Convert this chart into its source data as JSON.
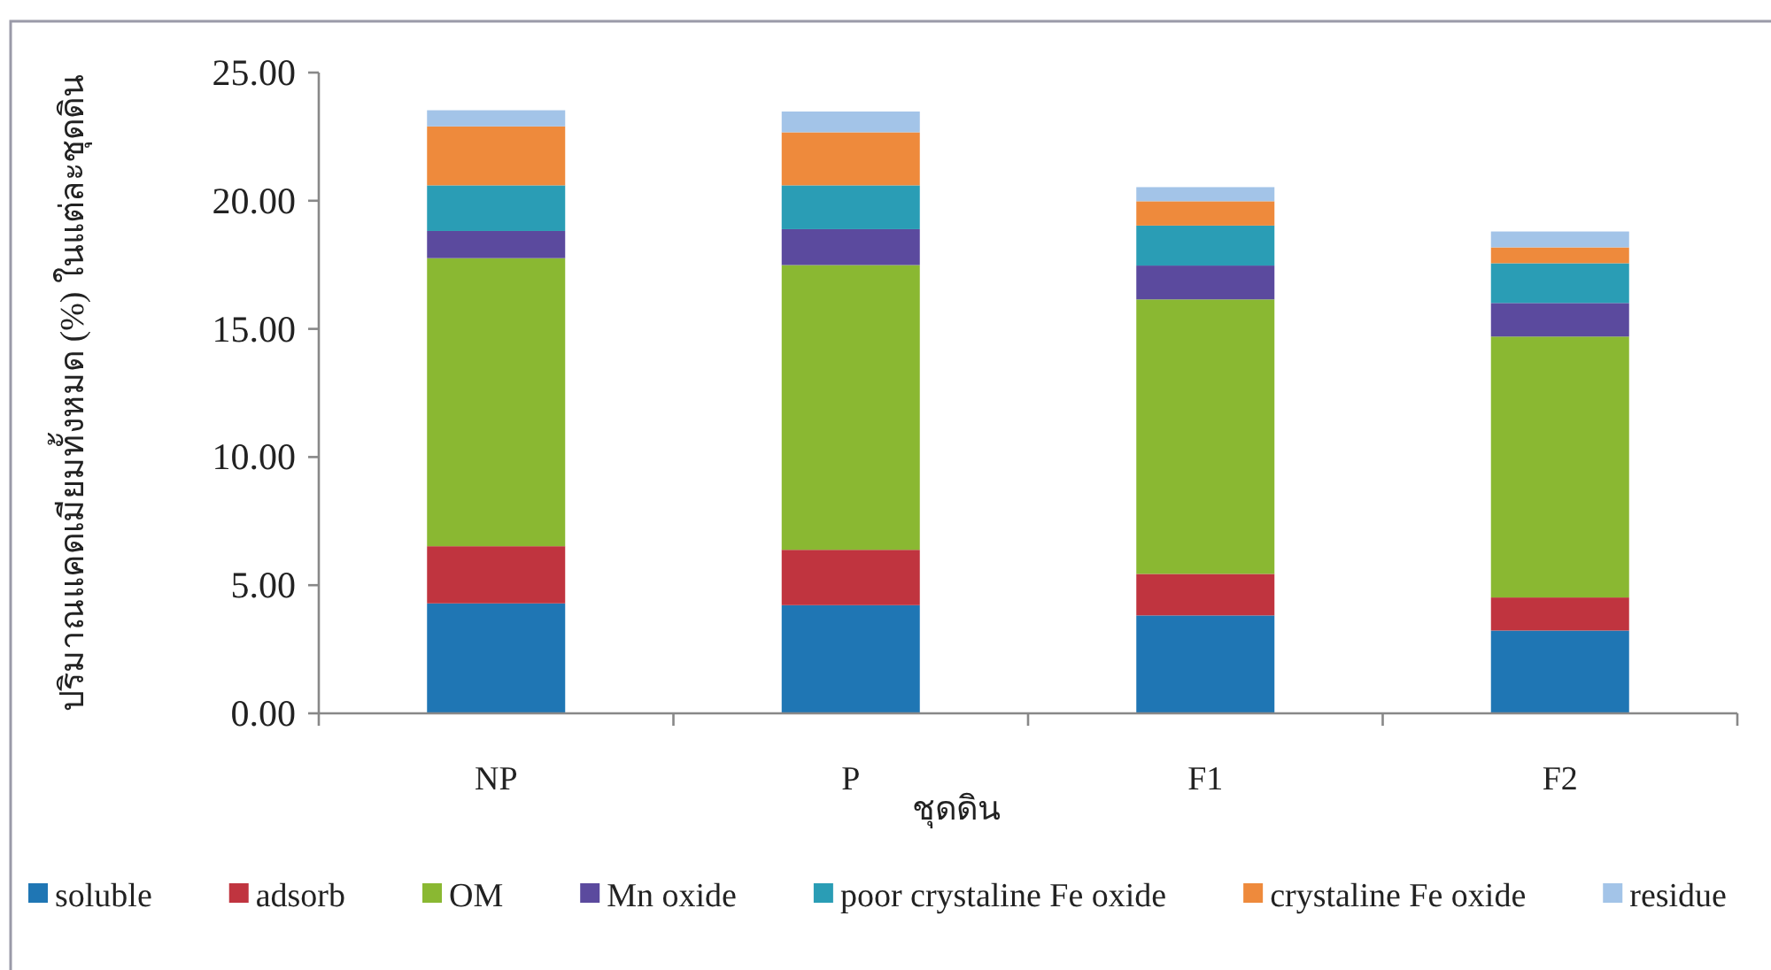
{
  "chart_data": {
    "type": "bar",
    "stacked": true,
    "xlabel": "ชุดดิน",
    "ylabel": "ปริมาณแคดเมียมทั้งหมด (%) ในแต่ละชุดดิน",
    "categories": [
      "NP",
      "P",
      "F1",
      "F2"
    ],
    "series": [
      {
        "name": "soluble",
        "color": "#1f76b4",
        "values": [
          4.29,
          4.22,
          3.82,
          3.23
        ]
      },
      {
        "name": "adsorb",
        "color": "#c0343f",
        "values": [
          2.23,
          2.16,
          1.62,
          1.29
        ]
      },
      {
        "name": "OM",
        "color": "#8ab832",
        "values": [
          11.24,
          11.11,
          10.71,
          10.18
        ]
      },
      {
        "name": "Mn oxide",
        "color": "#5b4a9e",
        "values": [
          1.06,
          1.4,
          1.32,
          1.31
        ]
      },
      {
        "name": "poor crystaline Fe oxide",
        "color": "#2a9db5",
        "values": [
          1.78,
          1.71,
          1.56,
          1.55
        ]
      },
      {
        "name": "crystaline Fe oxide",
        "color": "#ee8a3c",
        "values": [
          2.3,
          2.07,
          0.95,
          0.62
        ]
      },
      {
        "name": "residue",
        "color": "#a3c4e8",
        "values": [
          0.63,
          0.81,
          0.55,
          0.62
        ]
      }
    ],
    "ylim": [
      0,
      25
    ],
    "yticks": [
      {
        "value": 0,
        "label": "0.00"
      },
      {
        "value": 5,
        "label": "5.00"
      },
      {
        "value": 10,
        "label": "10.00"
      },
      {
        "value": 15,
        "label": "15.00"
      },
      {
        "value": 20,
        "label": "20.00"
      },
      {
        "value": 25,
        "label": "25.00"
      }
    ],
    "grid": false,
    "legend": "bottom"
  }
}
